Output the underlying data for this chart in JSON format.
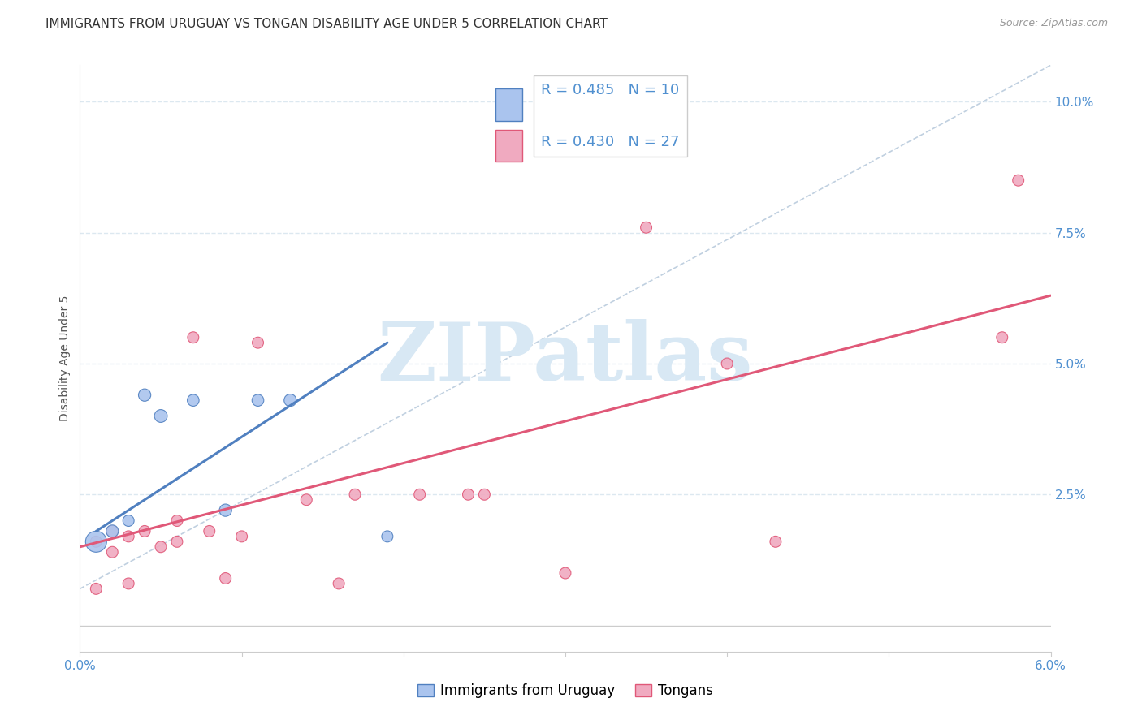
{
  "title": "IMMIGRANTS FROM URUGUAY VS TONGAN DISABILITY AGE UNDER 5 CORRELATION CHART",
  "source": "Source: ZipAtlas.com",
  "ylabel": "Disability Age Under 5",
  "xlim": [
    0.0,
    0.06
  ],
  "ylim": [
    -0.005,
    0.107
  ],
  "xticks": [
    0.0,
    0.01,
    0.02,
    0.03,
    0.04,
    0.05,
    0.06
  ],
  "xticklabels": [
    "0.0%",
    "",
    "",
    "",
    "",
    "",
    "6.0%"
  ],
  "yticks": [
    0.0,
    0.025,
    0.05,
    0.075,
    0.1
  ],
  "yticklabels": [
    "",
    "2.5%",
    "5.0%",
    "7.5%",
    "10.0%"
  ],
  "legend_r_blue": "R = 0.485",
  "legend_n_blue": "N = 10",
  "legend_r_pink": "R = 0.430",
  "legend_n_pink": "N = 27",
  "blue_scatter_x": [
    0.001,
    0.002,
    0.003,
    0.004,
    0.005,
    0.007,
    0.009,
    0.011,
    0.013,
    0.019
  ],
  "blue_scatter_y": [
    0.016,
    0.018,
    0.02,
    0.044,
    0.04,
    0.043,
    0.022,
    0.043,
    0.043,
    0.017
  ],
  "blue_scatter_size": [
    350,
    120,
    100,
    120,
    130,
    110,
    120,
    110,
    120,
    100
  ],
  "pink_scatter_x": [
    0.001,
    0.001,
    0.002,
    0.002,
    0.003,
    0.003,
    0.004,
    0.005,
    0.006,
    0.006,
    0.007,
    0.008,
    0.009,
    0.01,
    0.011,
    0.014,
    0.016,
    0.017,
    0.021,
    0.024,
    0.025,
    0.03,
    0.035,
    0.04,
    0.043,
    0.057,
    0.058
  ],
  "pink_scatter_y": [
    0.016,
    0.007,
    0.014,
    0.018,
    0.008,
    0.017,
    0.018,
    0.015,
    0.02,
    0.016,
    0.055,
    0.018,
    0.009,
    0.017,
    0.054,
    0.024,
    0.008,
    0.025,
    0.025,
    0.025,
    0.025,
    0.01,
    0.076,
    0.05,
    0.016,
    0.055,
    0.085
  ],
  "pink_scatter_size": [
    100,
    100,
    100,
    100,
    100,
    100,
    100,
    100,
    100,
    100,
    100,
    100,
    100,
    100,
    100,
    100,
    100,
    100,
    100,
    100,
    100,
    100,
    100,
    100,
    100,
    100,
    100
  ],
  "blue_color": "#aac4ee",
  "pink_color": "#f0aac0",
  "blue_line_color": "#5080c0",
  "pink_line_color": "#e05878",
  "blue_line_x": [
    0.001,
    0.019
  ],
  "blue_line_y": [
    0.018,
    0.054
  ],
  "pink_line_x": [
    0.0,
    0.06
  ],
  "pink_line_y": [
    0.015,
    0.063
  ],
  "dashed_line_x": [
    0.0,
    0.06
  ],
  "dashed_line_y": [
    0.007,
    0.107
  ],
  "background_color": "#ffffff",
  "grid_color": "#dce8f0",
  "title_fontsize": 11,
  "axis_label_fontsize": 10,
  "tick_fontsize": 11,
  "legend_fontsize": 13,
  "watermark_text": "ZIPatlas",
  "watermark_color": "#d8e8f4"
}
